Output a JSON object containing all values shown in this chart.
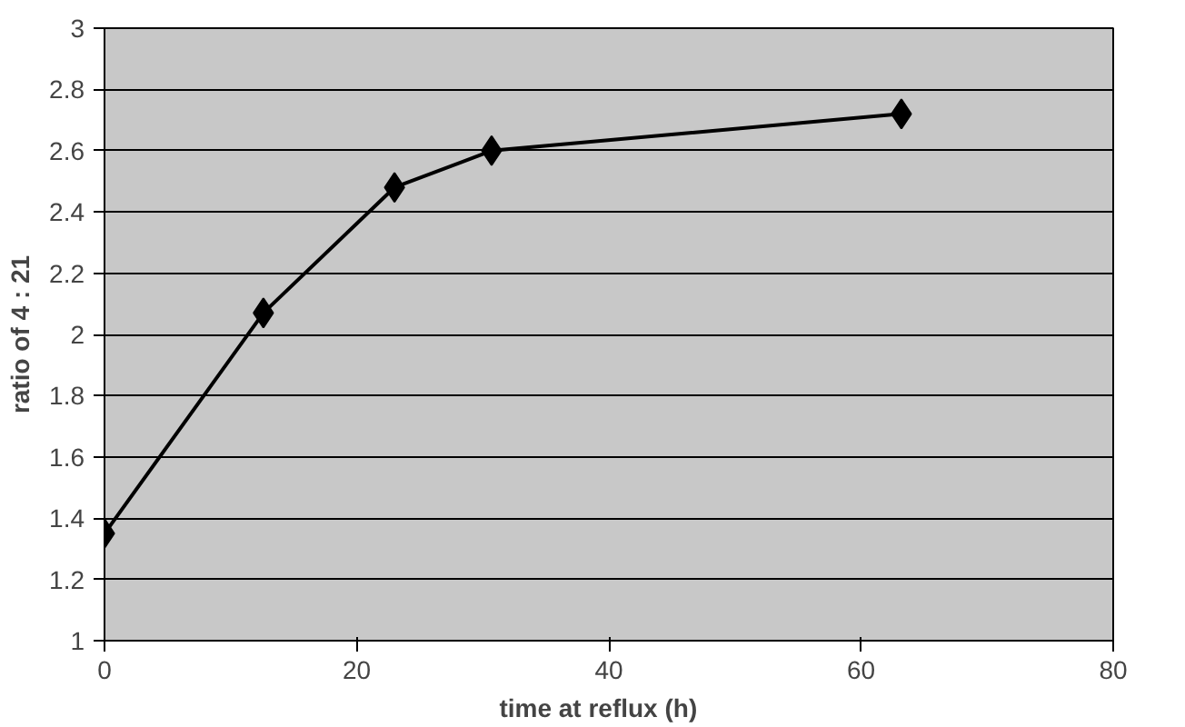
{
  "chart_data": {
    "type": "line",
    "xlabel": "time  at  reflux  (h)",
    "ylabel": "ratio of 4 : 21",
    "x": [
      0,
      12.6,
      23,
      30.7,
      63.2
    ],
    "series": [
      {
        "color": "#000000",
        "values": [
          1.35,
          2.07,
          2.48,
          2.6,
          2.72
        ]
      }
    ],
    "xlim": [
      0,
      80
    ],
    "xticks": [
      0,
      20,
      40,
      60,
      80
    ],
    "ylim": [
      1,
      3
    ],
    "yticks": [
      1,
      1.2,
      1.4,
      1.6,
      1.8,
      2,
      2.2,
      2.4,
      2.6,
      2.8,
      3
    ],
    "grid": "y",
    "marker": "diamond",
    "line_style": "solid"
  }
}
